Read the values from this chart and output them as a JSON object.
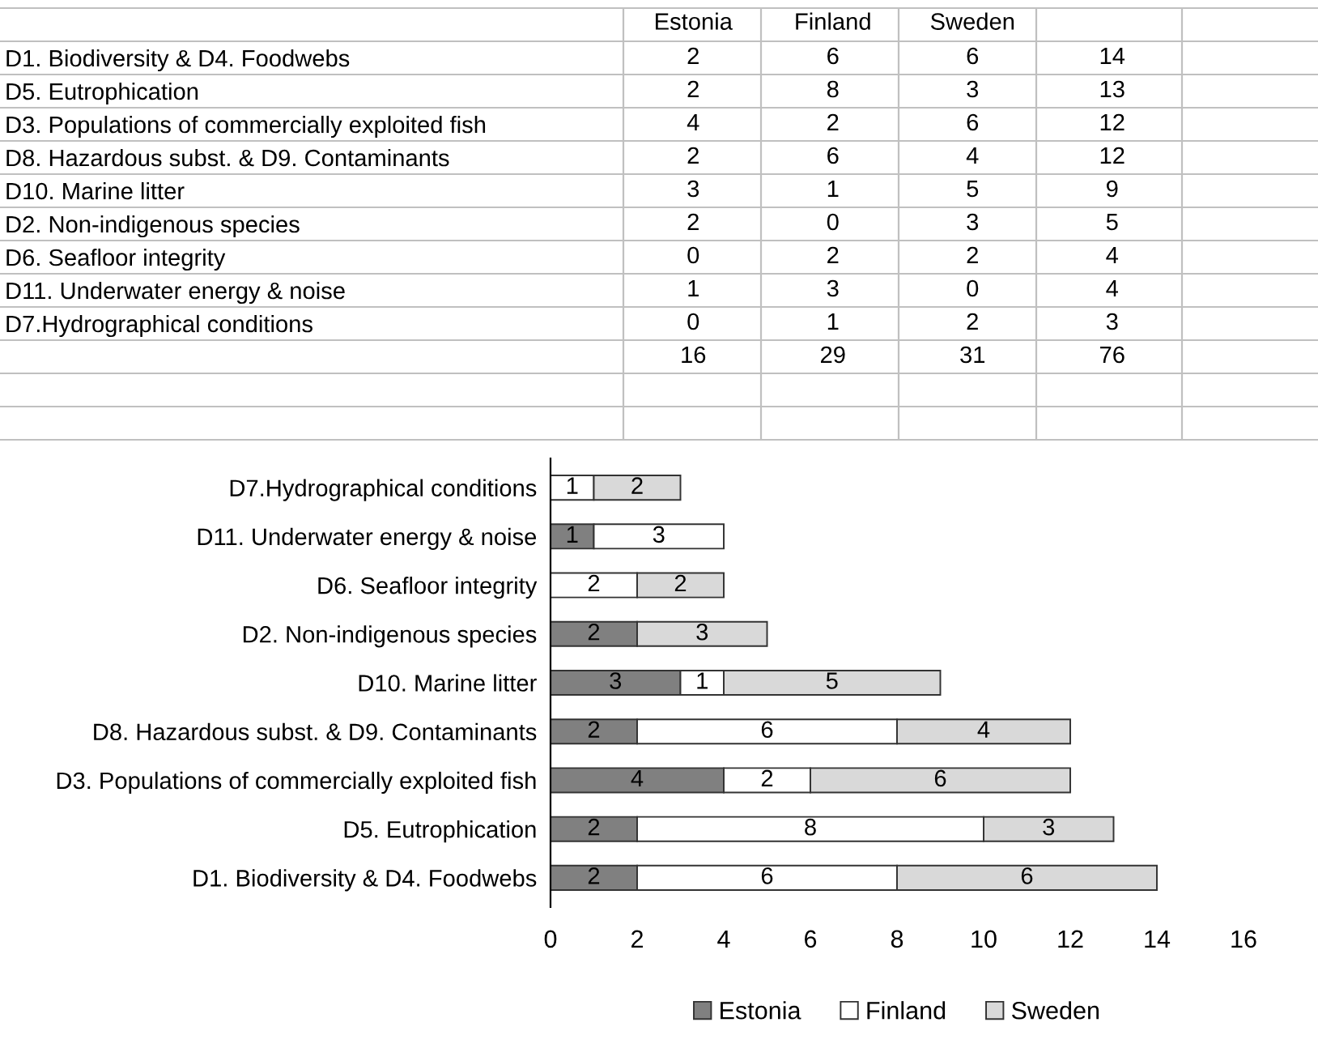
{
  "chart_data": [
    {
      "type": "heatmap",
      "data_labels": true,
      "categories": [
        "Estonia",
        "Finland",
        "Sweden",
        null
      ],
      "y_categories": [
        "D1. Biodiversity & D4. Foodwebs",
        "D5. Eutrophication",
        "D3. Populations of commercially exploited fish",
        "D8. Hazardous subst. & D9. Contaminants",
        "D10. Marine litter",
        "D2. Non-indigenous species",
        "D6. Seafloor integrity",
        "D11. Underwater energy & noise",
        "D7.Hydrographical conditions",
        null
      ],
      "cells": [
        [
          2,
          6,
          6,
          14
        ],
        [
          2,
          8,
          3,
          13
        ],
        [
          4,
          2,
          6,
          12
        ],
        [
          2,
          6,
          4,
          12
        ],
        [
          3,
          1,
          5,
          9
        ],
        [
          2,
          0,
          3,
          5
        ],
        [
          0,
          2,
          2,
          4
        ],
        [
          1,
          3,
          0,
          4
        ],
        [
          0,
          1,
          2,
          3
        ],
        [
          16,
          29,
          31,
          76
        ]
      ]
    },
    {
      "type": "bar",
      "orientation": "horizontal",
      "stacked": true,
      "categories": [
        "D7.Hydrographical conditions",
        "D11. Underwater energy & noise",
        "D6. Seafloor integrity",
        "D2. Non-indigenous species",
        "D10. Marine litter",
        "D8. Hazardous subst. & D9. Contaminants",
        "D3. Populations of commercially exploited fish",
        "D5. Eutrophication",
        "D1. Biodiversity & D4. Foodwebs"
      ],
      "series": [
        {
          "name": "Estonia",
          "color": "#808080",
          "values": [
            0,
            1,
            0,
            2,
            3,
            2,
            4,
            2,
            2
          ],
          "value_labels": [
            null,
            "1",
            null,
            "2",
            "3",
            "2",
            "4",
            "2",
            "2"
          ]
        },
        {
          "name": "Finland",
          "color": "#ffffff",
          "values": [
            1,
            3,
            2,
            0,
            1,
            6,
            2,
            8,
            6
          ],
          "value_labels": [
            "1",
            "3",
            "2",
            null,
            "1",
            "6",
            "2",
            "8",
            "6"
          ]
        },
        {
          "name": "Sweden",
          "color": "#d9d9d9",
          "values": [
            2,
            0,
            2,
            3,
            5,
            4,
            6,
            3,
            6
          ],
          "value_labels": [
            "2",
            null,
            "2",
            "3",
            "5",
            "4",
            "6",
            "3",
            "6"
          ]
        }
      ],
      "xlim": [
        0,
        16
      ],
      "xticks": [
        0,
        2,
        4,
        6,
        8,
        10,
        12,
        14,
        16
      ],
      "grid": false,
      "legend": "bottom"
    }
  ]
}
